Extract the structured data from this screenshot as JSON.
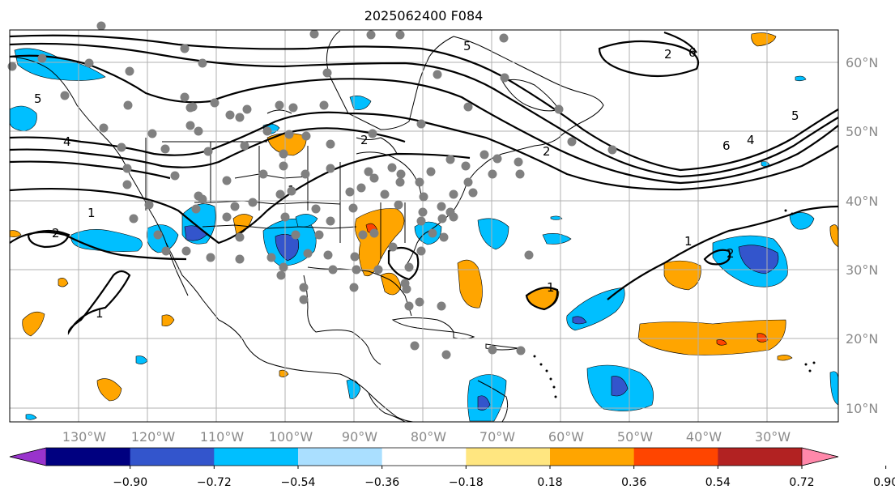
{
  "title": "2025062400 F084",
  "map": {
    "lon_range": [
      -140,
      20
    ],
    "lat_range": [
      8,
      65
    ],
    "lon_labels": [
      "130°W",
      "120°W",
      "110°W",
      "100°W",
      "90°W",
      "80°W",
      "70°W",
      "60°W",
      "50°W",
      "40°W",
      "30°W"
    ],
    "lat_labels": [
      "60°N",
      "50°N",
      "40°N",
      "30°N",
      "20°N",
      "10°N"
    ],
    "contour_labels": [
      "5",
      "4",
      "2",
      "1",
      "2",
      "1",
      "1",
      "1",
      "2",
      "1",
      "6",
      "4",
      "5",
      "2",
      "5",
      "6",
      "2"
    ],
    "colors": {
      "land_outline": "#000000",
      "grid": "#b0b0b0",
      "station_dot": "#808080"
    }
  },
  "colorbar": {
    "tick_labels": [
      "−0.90",
      "−0.72",
      "−0.54",
      "−0.36",
      "−0.18",
      "0.18",
      "0.36",
      "0.54",
      "0.72",
      "0.90"
    ],
    "colors": [
      "#9933cc",
      "#000080",
      "#3355cc",
      "#00bfff",
      "#aadfff",
      "#ffffff",
      "#ffe680",
      "#ffa500",
      "#ff4500",
      "#b22222",
      "#ff88aa"
    ]
  }
}
